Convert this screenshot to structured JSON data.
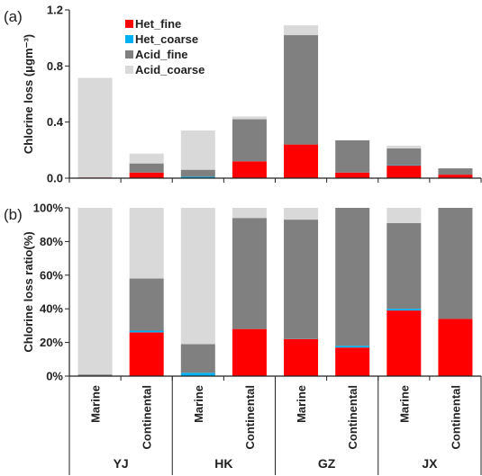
{
  "chart_data": [
    {
      "type": "bar",
      "stacked": true,
      "panel_label": "(a)",
      "ylabel": "Chlorine loss (μgm⁻³)",
      "ylim": [
        0,
        1.2
      ],
      "yticks": [
        "0.0",
        "0.4",
        "0.8",
        "1.2"
      ],
      "categories": [
        "Marine",
        "Continental",
        "Marine",
        "Continental",
        "Marine",
        "Continental",
        "Marine",
        "Continental"
      ],
      "groups": [
        "YJ",
        "HK",
        "GZ",
        "JX"
      ],
      "legend_position": "top-left",
      "series": [
        {
          "name": "Het_fine",
          "color": "#ff0000",
          "values": [
            0.005,
            0.04,
            0.0,
            0.12,
            0.24,
            0.04,
            0.09,
            0.025
          ]
        },
        {
          "name": "Het_coarse",
          "color": "#00b0f0",
          "values": [
            0.0,
            0.0,
            0.01,
            0.0,
            0.0,
            0.0,
            0.002,
            0.0
          ]
        },
        {
          "name": "Acid_fine",
          "color": "#808080",
          "values": [
            0.0,
            0.065,
            0.05,
            0.3,
            0.78,
            0.23,
            0.12,
            0.045
          ]
        },
        {
          "name": "Acid_coarse",
          "color": "#d9d9d9",
          "values": [
            0.71,
            0.07,
            0.28,
            0.02,
            0.07,
            0.0,
            0.02,
            0.0
          ]
        }
      ]
    },
    {
      "type": "bar",
      "stacked": true,
      "panel_label": "(b)",
      "ylabel": "Chlorine loss ratio(%)",
      "ylim": [
        0,
        100
      ],
      "yticks": [
        "0%",
        "20%",
        "40%",
        "60%",
        "80%",
        "100%"
      ],
      "categories": [
        "Marine",
        "Continental",
        "Marine",
        "Continental",
        "Marine",
        "Continental",
        "Marine",
        "Continental"
      ],
      "groups": [
        "YJ",
        "HK",
        "GZ",
        "JX"
      ],
      "series": [
        {
          "name": "Het_fine",
          "color": "#ff0000",
          "values": [
            0,
            26,
            0,
            28,
            22,
            17,
            39,
            34
          ]
        },
        {
          "name": "Het_coarse",
          "color": "#00b0f0",
          "values": [
            0,
            1,
            2,
            0,
            0,
            1,
            1,
            0
          ]
        },
        {
          "name": "Acid_fine",
          "color": "#808080",
          "values": [
            1,
            31,
            17,
            66,
            71,
            82,
            51,
            66
          ]
        },
        {
          "name": "Acid_coarse",
          "color": "#d9d9d9",
          "values": [
            99,
            42,
            81,
            6,
            7,
            0,
            9,
            0
          ]
        }
      ]
    }
  ]
}
